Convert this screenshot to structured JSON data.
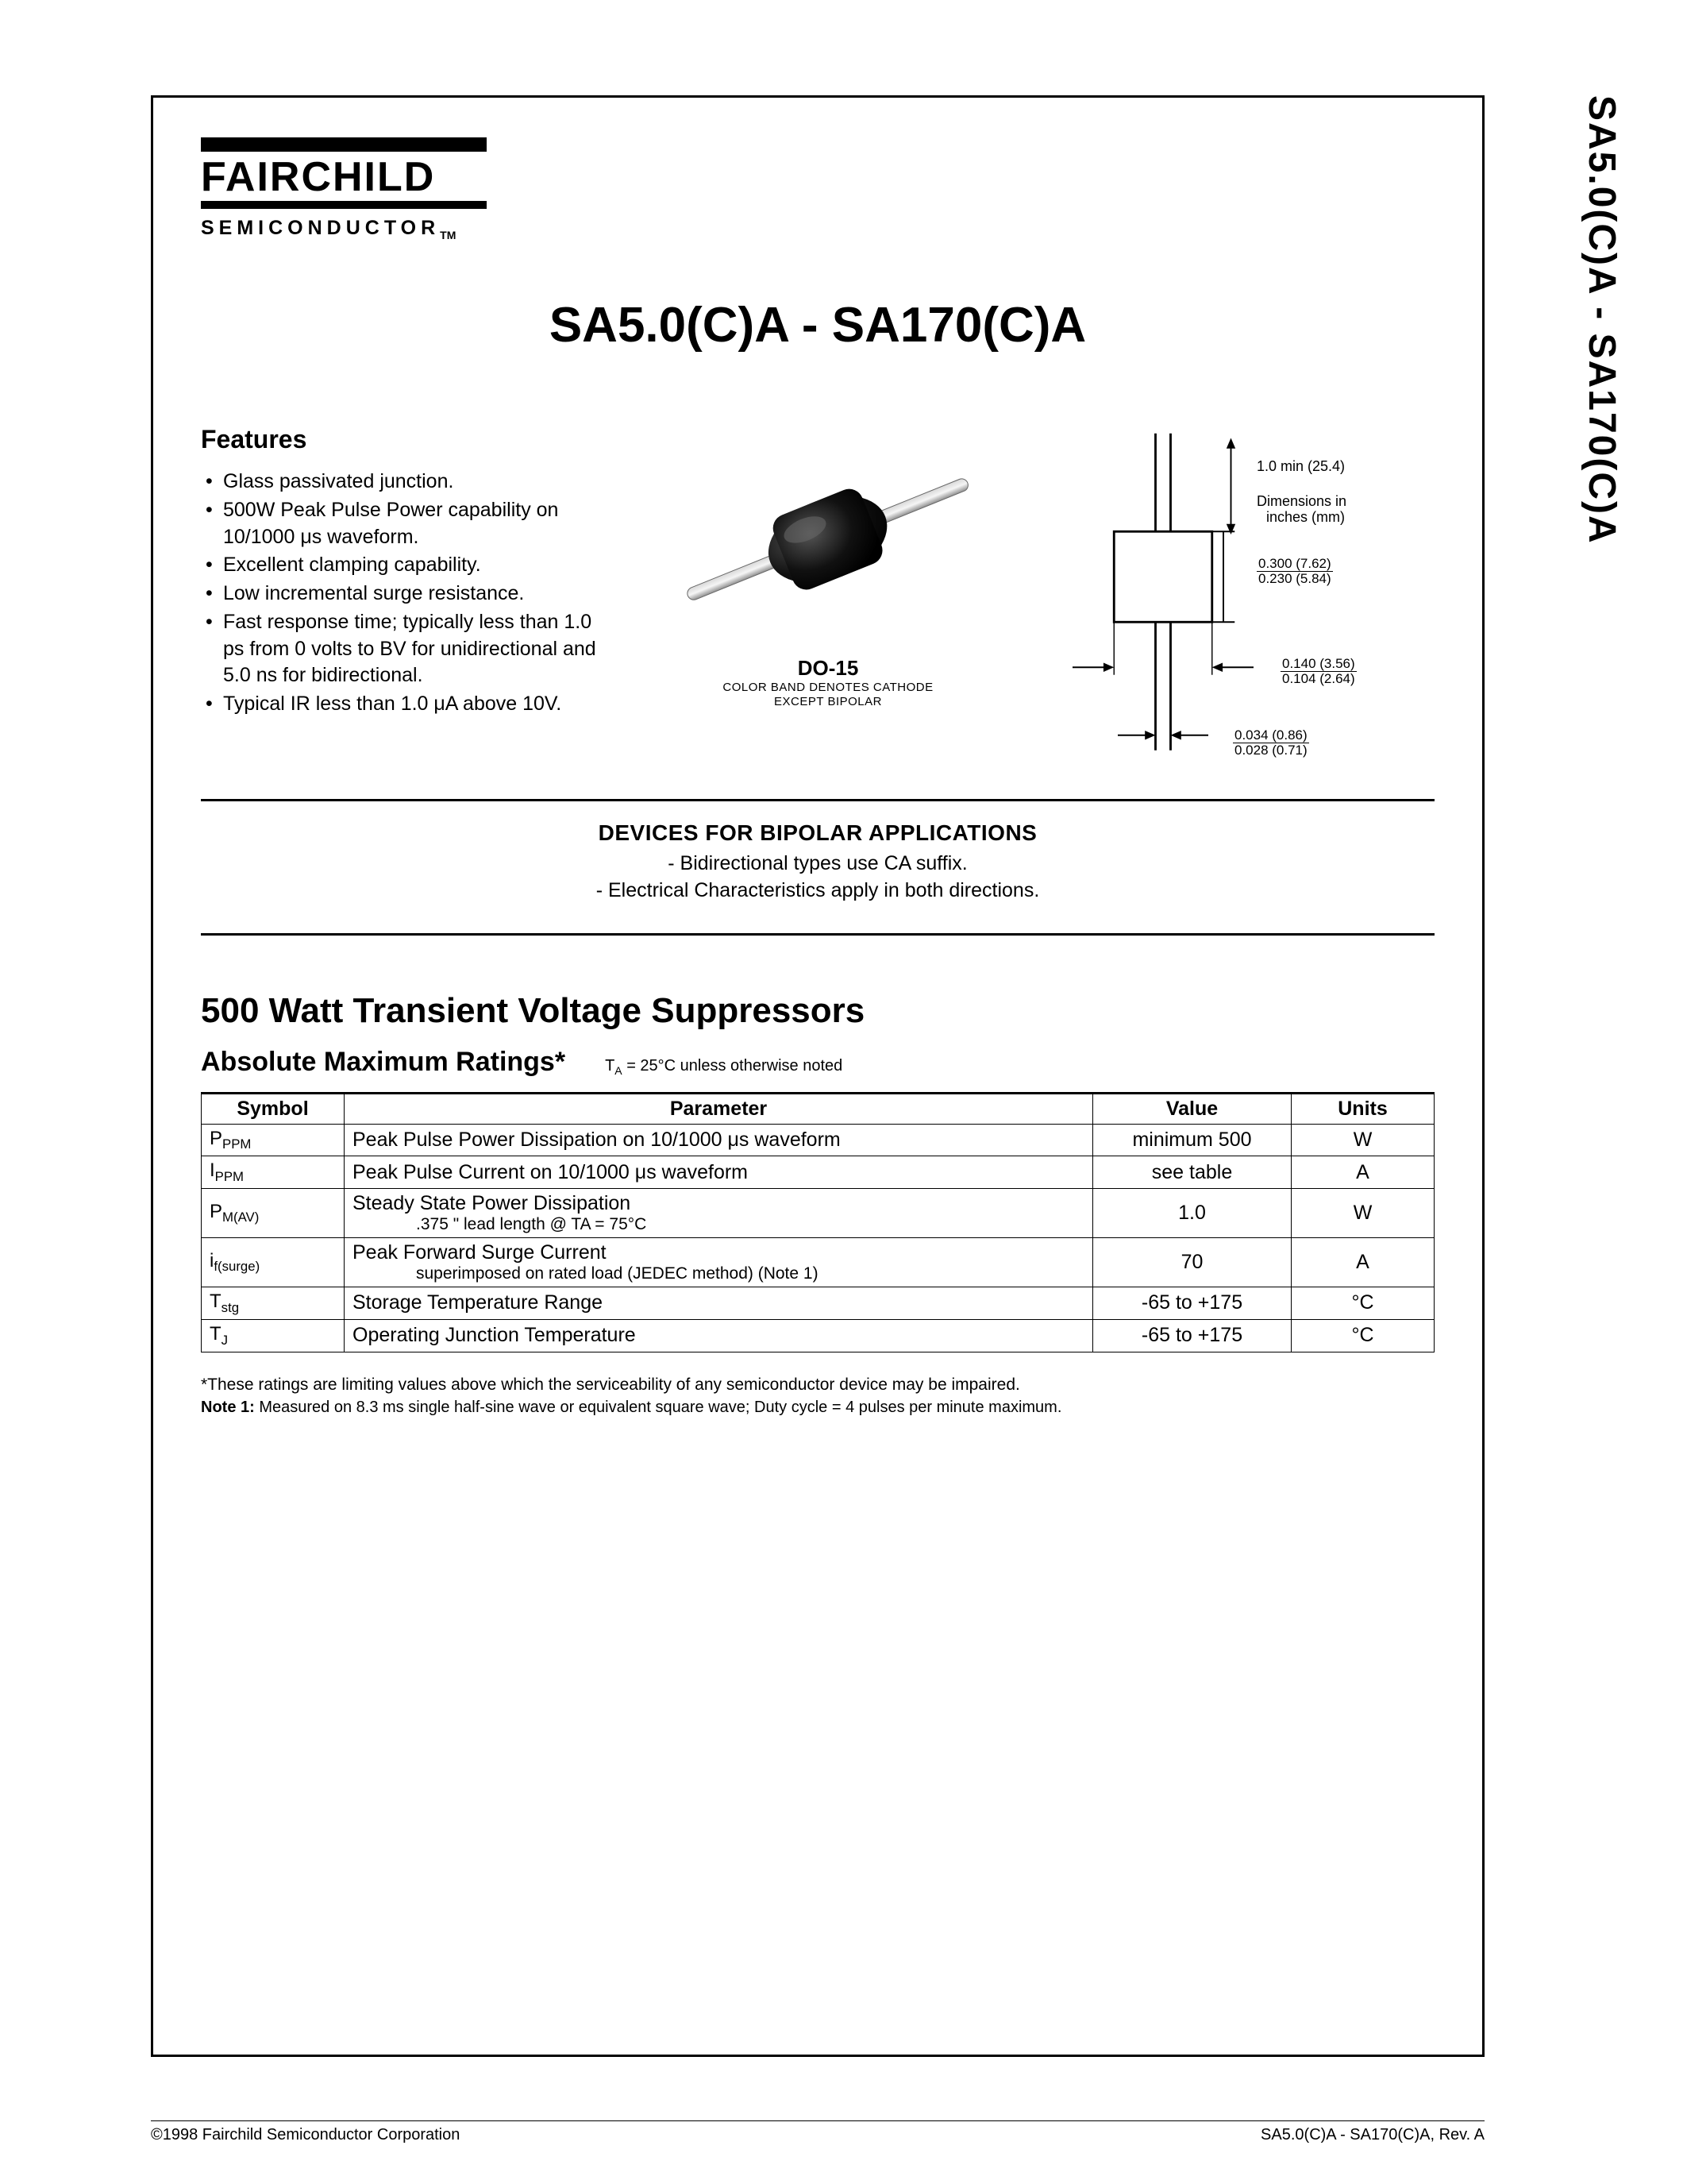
{
  "side_label": "SA5.0(C)A - SA170(C)A",
  "logo": {
    "brand": "FAIRCHILD",
    "sub": "SEMICONDUCTOR",
    "tm": "TM"
  },
  "main_title": "SA5.0(C)A - SA170(C)A",
  "features": {
    "heading": "Features",
    "items": [
      "Glass passivated junction.",
      "500W Peak Pulse Power capability on 10/1000 μs waveform.",
      "Excellent clamping capability.",
      "Low incremental surge resistance.",
      "Fast response time; typically less than 1.0 ps from 0 volts to BV for unidirectional and 5.0 ns for bidirectional.",
      "Typical IR less than 1.0 μA above 10V."
    ]
  },
  "package": {
    "name": "DO-15",
    "note1": "COLOR BAND DENOTES CATHODE",
    "note2": "EXCEPT BIPOLAR"
  },
  "dimensions": {
    "lead_min": "1.0 min   (25.4)",
    "dims_in": "Dimensions in",
    "dims_in2": "inches (mm)",
    "body_len": {
      "top": "0.300   (7.62)",
      "bot": "0.230   (5.84)"
    },
    "body_dia": {
      "top": "0.140   (3.56)",
      "bot": "0.104   (2.64)"
    },
    "lead_dia": {
      "top": "0.034   (0.86)",
      "bot": "0.028   (0.71)"
    }
  },
  "bipolar": {
    "heading": "DEVICES FOR BIPOLAR APPLICATIONS",
    "line1": "- Bidirectional  types use CA suffix.",
    "line2": "- Electrical Characteristics apply in both directions."
  },
  "section_title": "500 Watt Transient Voltage Suppressors",
  "ratings": {
    "title": "Absolute Maximum Ratings*",
    "cond": "TA = 25°C unless otherwise noted",
    "columns": [
      "Symbol",
      "Parameter",
      "Value",
      "Units"
    ],
    "rows": [
      {
        "sym": "P",
        "sym_sub": "PPM",
        "param": "Peak Pulse Power Dissipation on 10/1000 μs waveform",
        "param_sub": "",
        "val": "minimum 500",
        "unit": "W"
      },
      {
        "sym": "I",
        "sym_sub": "PPM",
        "param": "Peak Pulse Current on 10/1000 μs waveform",
        "param_sub": "",
        "val": "see table",
        "unit": "A"
      },
      {
        "sym": "P",
        "sym_sub": "M(AV)",
        "param": "Steady State Power Dissipation",
        "param_sub": ".375 \" lead length @ TA = 75°C",
        "val": "1.0",
        "unit": "W"
      },
      {
        "sym": "i",
        "sym_sub": "f(surge)",
        "param": "Peak Forward Surge Current",
        "param_sub": "superimposed on rated load (JEDEC method)   (Note 1)",
        "val": "70",
        "unit": "A"
      },
      {
        "sym": "T",
        "sym_sub": "stg",
        "param": "Storage Temperature Range",
        "param_sub": "",
        "val": "-65 to +175",
        "unit": "°C"
      },
      {
        "sym": "T",
        "sym_sub": "J",
        "param": "Operating Junction Temperature",
        "param_sub": "",
        "val": "-65 to +175",
        "unit": "°C"
      }
    ]
  },
  "footnotes": {
    "star": "*These ratings are limiting values above which the serviceability of any semiconductor device may be impaired.",
    "note1": "Note 1: Measured on 8.3 ms single half-sine wave or equivalent square wave; Duty cycle = 4 pulses per minute maximum."
  },
  "footer": {
    "left": "©1998 Fairchild Semiconductor Corporation",
    "right": "SA5.0(C)A - SA170(C)A, Rev. A"
  }
}
